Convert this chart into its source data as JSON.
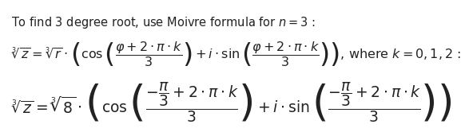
{
  "background_color": "#ffffff",
  "top_text": "To find 3 degree root, use Moivre formula for $n = 3$ :",
  "line1": "$\\sqrt[3]{z} = \\sqrt[3]{r} \\cdot \\left( \\cos\\left( \\dfrac{\\varphi + 2 \\cdot \\pi \\cdot k}{3} \\right) + i \\cdot \\sin\\left( \\dfrac{\\varphi + 2 \\cdot \\pi \\cdot k}{3} \\right) \\right)$, where $k = 0 , 1 , 2$ :",
  "line2": "$\\sqrt[3]{z} = \\sqrt[3]{8} \\cdot \\left( \\cos\\left( \\dfrac{-\\dfrac{\\pi}{3} + 2 \\cdot \\pi \\cdot k}{3} \\right) + i \\cdot \\sin\\left( \\dfrac{-\\dfrac{\\pi}{3} + 2 \\cdot \\pi \\cdot k}{3} \\right) \\right)$",
  "text_color": "#222222",
  "font_size_top": 10.5,
  "font_size_line1": 11.5,
  "font_size_line2": 13.5
}
